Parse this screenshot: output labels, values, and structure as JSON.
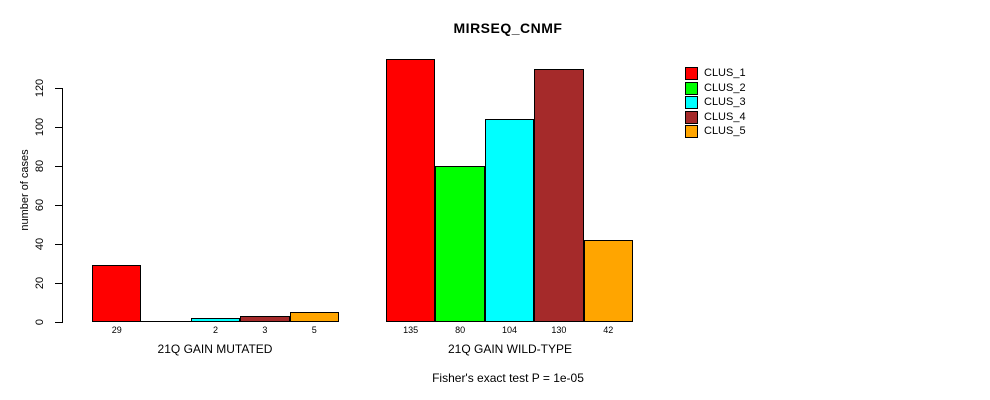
{
  "chart_data": {
    "type": "bar",
    "title": "MIRSEQ_CNMF",
    "xlabel": "",
    "ylabel": "number of cases",
    "annotation": "Fisher's exact test P = 1e-05",
    "yticks": [
      0,
      20,
      40,
      60,
      80,
      100,
      120
    ],
    "ylim": [
      0,
      135
    ],
    "grid": false,
    "legend_position": "top-right",
    "categories": [
      "21Q GAIN MUTATED",
      "21Q GAIN WILD-TYPE"
    ],
    "series": [
      {
        "name": "CLUS_1",
        "color": "#FF0000",
        "values": [
          29,
          135
        ]
      },
      {
        "name": "CLUS_2",
        "color": "#00FF00",
        "values": [
          0,
          80
        ]
      },
      {
        "name": "CLUS_3",
        "color": "#00FFFF",
        "values": [
          2,
          104
        ]
      },
      {
        "name": "CLUS_4",
        "color": "#A52A2A",
        "values": [
          3,
          130
        ]
      },
      {
        "name": "CLUS_5",
        "color": "#FFA500",
        "values": [
          5,
          42
        ]
      }
    ],
    "bar_labels": [
      [
        "29",
        "",
        "2",
        "3",
        "5"
      ],
      [
        "135",
        "80",
        "104",
        "130",
        "42"
      ]
    ]
  }
}
